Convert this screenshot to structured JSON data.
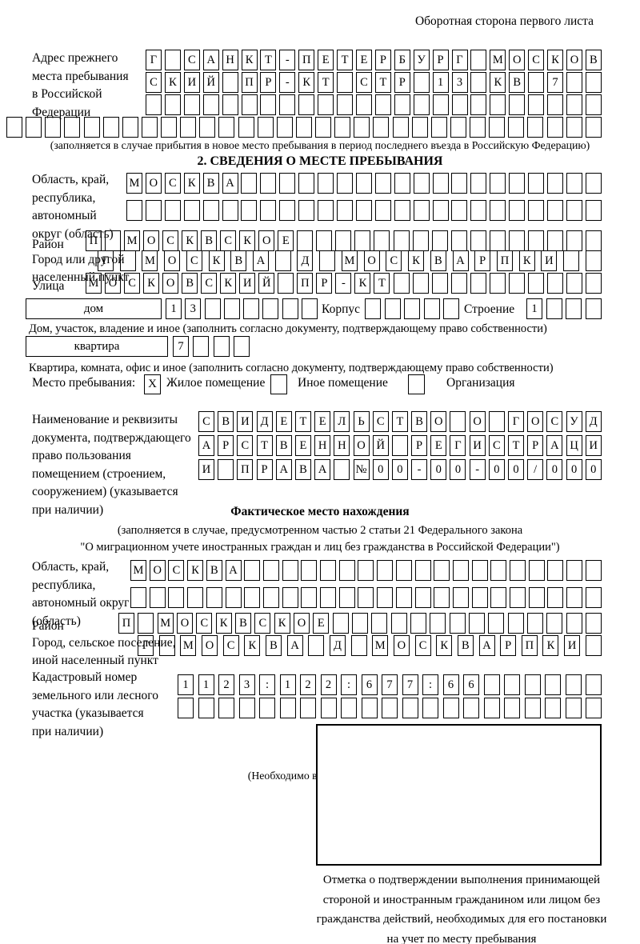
{
  "colors": {
    "ink": "#000000",
    "paper": "#ffffff"
  },
  "page": {
    "header_note": "Оборотная сторона первого листа"
  },
  "prev_address": {
    "label_lines": [
      "Адрес прежнего",
      "места пребывания",
      "в Российской",
      "Федерации"
    ],
    "rows": [
      {
        "cells": "Г САНКТ-ПЕТЕРБУРГ МОСКОВ",
        "count": 24
      },
      {
        "cells": "СКИЙ ПР-КТ СТР 13 КВ 7",
        "count": 24
      },
      {
        "cells": "",
        "count": 24
      },
      {
        "cells": "",
        "count": 31
      }
    ],
    "note": "(заполняется в случае прибытия в новое место пребывания в период последнего въезда в Российскую Федерацию)"
  },
  "section2": {
    "title": "2. СВЕДЕНИЯ О МЕСТЕ ПРЕБЫВАНИЯ",
    "oblast": {
      "label_lines": [
        "Область, край,",
        "республика,",
        "автономный",
        "округ (область)"
      ],
      "rows": [
        {
          "cells": "МОСКВА",
          "count": 25
        },
        {
          "cells": "",
          "count": 25
        }
      ]
    },
    "raion": {
      "label": "Район",
      "row": {
        "cells": "П МОСКВСКОЕ",
        "count": 27
      }
    },
    "city": {
      "label_lines": [
        "Город или другой",
        "населенный пункт"
      ],
      "row": {
        "cells": "Г МОСКВА Д МОСКВАРПКИ",
        "count": 23
      }
    },
    "street": {
      "label": "Улица",
      "row": {
        "cells": "МОСКОВСКИЙ ПР-КТ",
        "count": 27
      }
    },
    "house_line": {
      "box_label": "дом",
      "house_cells": {
        "cells": "13",
        "count": 8
      },
      "korpus_label": "Корпус",
      "korpus_cells": {
        "cells": "",
        "count": 5
      },
      "stroenie_label": "Строение",
      "stroenie_cells": {
        "cells": "1",
        "count": 4
      }
    },
    "house_note": "Дом, участок, владение и иное (заполнить согласно документу, подтверждающему право собственности)",
    "apartment_line": {
      "box_label": "квартира",
      "cells": {
        "cells": "7",
        "count": 4
      }
    },
    "apartment_note": "Квартира, комната, офис и иное (заполнить согласно документу, подтверждающему право собственности)",
    "stay_type": {
      "label": "Место пребывания:",
      "options": [
        {
          "label": "Жилое помещение",
          "mark": "X"
        },
        {
          "label": "Иное помещение",
          "mark": ""
        },
        {
          "label": "Организация",
          "mark": ""
        }
      ],
      "note": "(Необходимо выбрать нужное)"
    },
    "doc": {
      "label_lines": [
        "Наименование и реквизиты",
        "документа, подтверждающего",
        "право пользования",
        "помещением (строением,",
        "сооружением) (указывается",
        "при наличии)"
      ],
      "rows": [
        {
          "cells": "СВИДЕТЕЛЬСТВО О ГОСУД",
          "count": 21
        },
        {
          "cells": "АРСТВЕННОЙ РЕГИСТРАЦИ",
          "count": 21
        },
        {
          "cells": "И ПРАВА №00-00-00/000",
          "count": 21
        }
      ]
    }
  },
  "actual_location": {
    "title": "Фактическое место нахождения",
    "note_lines": [
      "(заполняется в случае, предусмотренном частью 2 статьи 21 Федерального закона",
      "\"О миграционном учете иностранных граждан и лиц без гражданства в Российской Федерации\")"
    ],
    "oblast": {
      "label_lines": [
        "Область, край,",
        "республика,",
        "автономный округ",
        "(область)"
      ],
      "rows": [
        {
          "cells": "МОСКВА",
          "count": 25
        },
        {
          "cells": "",
          "count": 25
        }
      ]
    },
    "raion": {
      "label": "Район",
      "row": {
        "cells": "П МОСКВСКОЕ",
        "count": 25
      }
    },
    "city": {
      "label_lines": [
        "Город, сельское поселение,",
        "иной населенный пункт"
      ],
      "row": {
        "cells": "Г МОСКВА Д МОСКВАРПКИ",
        "count": 22
      }
    },
    "cadastre": {
      "label_lines": [
        "Кадастровый номер",
        "земельного или лесного",
        "участка (указывается",
        "при наличии)"
      ],
      "rows": [
        {
          "cells": "1123:122:677:66",
          "count": 21
        },
        {
          "cells": "",
          "count": 21
        }
      ]
    },
    "stamp_note_lines": [
      "Отметка о подтверждении выполнения принимающей",
      "стороной и иностранным гражданином или лицом без",
      "гражданства действий, необходимых для его постановки",
      "на учет по месту пребывания"
    ]
  }
}
